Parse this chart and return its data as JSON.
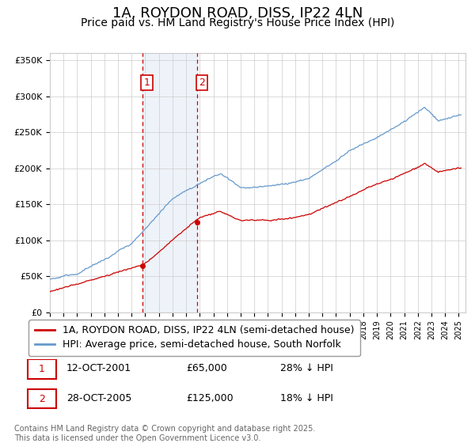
{
  "title": "1A, ROYDON ROAD, DISS, IP22 4LN",
  "subtitle": "Price paid vs. HM Land Registry's House Price Index (HPI)",
  "ylabel_ticks": [
    "£0",
    "£50K",
    "£100K",
    "£150K",
    "£200K",
    "£250K",
    "£300K",
    "£350K"
  ],
  "ytick_vals": [
    0,
    50000,
    100000,
    150000,
    200000,
    250000,
    300000,
    350000
  ],
  "ylim": [
    0,
    360000
  ],
  "xlim_start": 1995.0,
  "xlim_end": 2025.5,
  "sale1_date": 2001.79,
  "sale1_price": 65000,
  "sale1_label": "1",
  "sale1_hpi_pct": "28% ↓ HPI",
  "sale1_date_str": "12-OCT-2001",
  "sale2_date": 2005.83,
  "sale2_price": 125000,
  "sale2_label": "2",
  "sale2_hpi_pct": "18% ↓ HPI",
  "sale2_date_str": "28-OCT-2005",
  "red_line_color": "#cc0000",
  "blue_line_color": "#6699cc",
  "shade_color": "#c8d8ee",
  "vline_color": "#cc0000",
  "grid_color": "#cccccc",
  "bg_color": "#ffffff",
  "legend_label_red": "1A, ROYDON ROAD, DISS, IP22 4LN (semi-detached house)",
  "legend_label_blue": "HPI: Average price, semi-detached house, South Norfolk",
  "copyright_text": "Contains HM Land Registry data © Crown copyright and database right 2025.\nThis data is licensed under the Open Government Licence v3.0.",
  "title_fontsize": 13,
  "subtitle_fontsize": 10,
  "tick_fontsize": 8,
  "legend_fontsize": 9,
  "table_fontsize": 9
}
